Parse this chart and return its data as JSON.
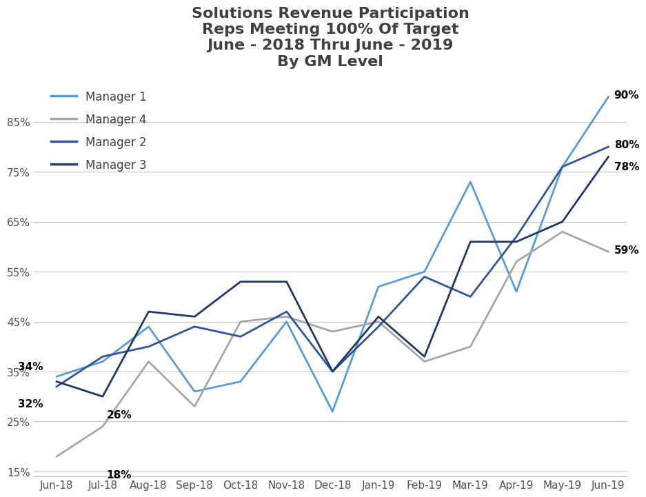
{
  "title": "Solutions Revenue Participation\nReps Meeting 100% Of Target\nJune - 2018 Thru June - 2019\nBy GM Level",
  "months": [
    "Jun-18",
    "Jul-18",
    "Aug-18",
    "Sep-18",
    "Oct-18",
    "Nov-18",
    "Dec-18",
    "Jan-19",
    "Feb-19",
    "Mar-19",
    "Apr-19",
    "May-19",
    "Jun-19"
  ],
  "manager1": [
    0.34,
    0.37,
    0.44,
    0.31,
    0.33,
    0.45,
    0.27,
    0.52,
    0.55,
    0.73,
    0.51,
    0.76,
    0.9
  ],
  "manager4": [
    0.18,
    0.24,
    0.37,
    0.28,
    0.45,
    0.46,
    0.43,
    0.45,
    0.37,
    0.4,
    0.57,
    0.63,
    0.59
  ],
  "manager2": [
    0.32,
    0.38,
    0.4,
    0.44,
    0.42,
    0.47,
    0.35,
    0.44,
    0.54,
    0.5,
    0.62,
    0.76,
    0.8
  ],
  "manager3": [
    0.33,
    0.3,
    0.47,
    0.46,
    0.53,
    0.53,
    0.35,
    0.46,
    0.38,
    0.61,
    0.61,
    0.65,
    0.78
  ],
  "manager1_color": "#5b9bd5",
  "manager4_color": "#a6a6a6",
  "manager2_color": "#2f5597",
  "manager3_color": "#1f3864",
  "ylim": [
    0.14,
    0.94
  ],
  "yticks": [
    0.15,
    0.25,
    0.35,
    0.45,
    0.55,
    0.65,
    0.75,
    0.85
  ],
  "background_color": "#ffffff",
  "line_width": 2.0,
  "legend_labels": [
    "Manager 1",
    "Manager 4",
    "Manager 2",
    "Manager 3"
  ],
  "legend_colors": [
    "#5b9bd5",
    "#a6a6a6",
    "#2f5597",
    "#1f3864"
  ]
}
